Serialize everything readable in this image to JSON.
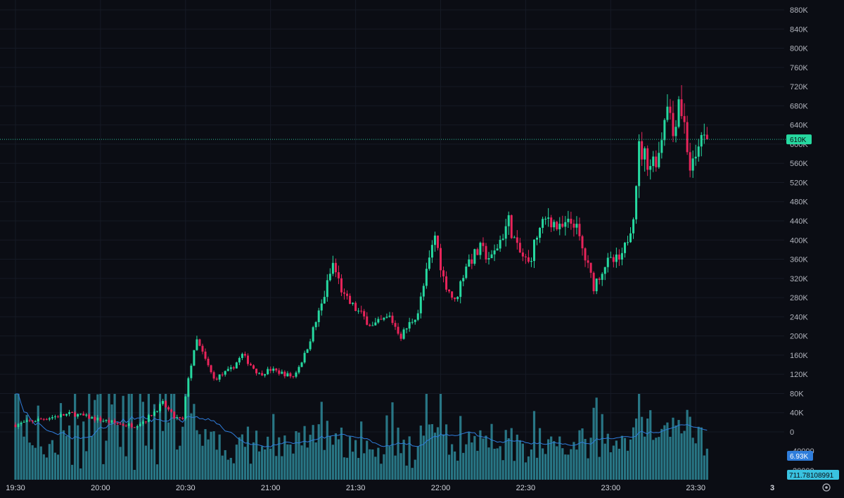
{
  "colors": {
    "background": "#0b0d14",
    "up": "#26d9a0",
    "down": "#e8245a",
    "volume": "#2e8a99",
    "volume_ma": "#2f7ddb",
    "grid": "#161a25",
    "price_line": "#2dbf9a"
  },
  "chart_data": {
    "type": "candlestick",
    "price_axis": {
      "ticks": [
        "880K",
        "840K",
        "800K",
        "760K",
        "720K",
        "680K",
        "640K",
        "600K",
        "560K",
        "520K",
        "480K",
        "440K",
        "400K",
        "360K",
        "320K",
        "280K",
        "240K",
        "200K",
        "160K",
        "120K",
        "80K",
        "40K",
        "0"
      ],
      "tick_values": [
        880000,
        840000,
        800000,
        760000,
        720000,
        680000,
        640000,
        600000,
        560000,
        520000,
        480000,
        440000,
        400000,
        360000,
        320000,
        280000,
        240000,
        200000,
        160000,
        120000,
        80000,
        40000,
        0
      ]
    },
    "time_axis": {
      "ticks": [
        "19:30",
        "20:00",
        "20:30",
        "21:00",
        "21:30",
        "22:00",
        "22:30",
        "23:00",
        "23:30"
      ],
      "start": "19:30",
      "end": "23:34",
      "bar_minutes": 1
    },
    "anchors_time": [
      "19:30",
      "19:40",
      "19:50",
      "20:00",
      "20:08",
      "20:12",
      "20:16",
      "20:22",
      "20:26",
      "20:29",
      "20:31",
      "20:34",
      "20:40",
      "20:46",
      "20:50",
      "20:56",
      "21:00",
      "21:08",
      "21:12",
      "21:18",
      "21:22",
      "21:26",
      "21:31",
      "21:36",
      "21:42",
      "21:46",
      "21:52",
      "21:58",
      "22:01",
      "22:05",
      "22:09",
      "22:14",
      "22:18",
      "22:24",
      "22:27",
      "22:31",
      "22:34",
      "22:38",
      "22:42",
      "22:47",
      "22:50",
      "22:54",
      "22:58",
      "23:04",
      "23:07",
      "23:08",
      "23:10",
      "23:14",
      "23:17",
      "23:20",
      "23:22",
      "23:24",
      "23:26",
      "23:28",
      "23:30",
      "23:31",
      "23:32",
      "23:33"
    ],
    "anchors_price": [
      15000,
      28000,
      38000,
      25000,
      15000,
      14000,
      25000,
      60000,
      30000,
      25000,
      115000,
      190000,
      110000,
      130000,
      160000,
      120000,
      130000,
      115000,
      160000,
      265000,
      350000,
      280000,
      250000,
      220000,
      240000,
      200000,
      250000,
      410000,
      320000,
      270000,
      350000,
      380000,
      360000,
      440000,
      380000,
      350000,
      410000,
      450000,
      420000,
      440000,
      380000,
      305000,
      350000,
      360000,
      430000,
      460000,
      590000,
      560000,
      580000,
      700000,
      620000,
      700000,
      640000,
      550000,
      560000,
      610000,
      600000,
      610000
    ],
    "last_price_label": "610K",
    "last_price": 610000,
    "volume_label": "6.93K",
    "volume_ma_label": "711.78108991",
    "volume_axis_labels": [
      "40000",
      "20000"
    ],
    "page_label": "3"
  }
}
